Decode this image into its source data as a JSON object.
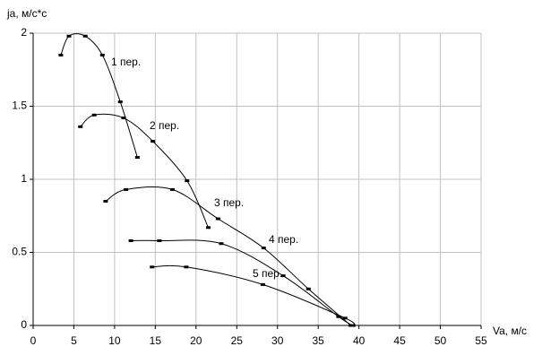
{
  "chart_data": {
    "type": "line",
    "x_label": "Va, м/с",
    "y_label": "ja, м/с*с",
    "xlim": [
      0,
      55
    ],
    "xticks": [
      0,
      5,
      10,
      15,
      20,
      25,
      30,
      35,
      40,
      45,
      50,
      55
    ],
    "ylim": [
      0,
      2
    ],
    "yticks": [
      0,
      0.5,
      1,
      1.5,
      2
    ],
    "grid": true,
    "series": [
      {
        "name": "1 пер.",
        "color": "#000000",
        "x": [
          3.4,
          4.4,
          6.4,
          8.5,
          10.7,
          12.8
        ],
        "values": [
          1.85,
          1.98,
          1.98,
          1.85,
          1.53,
          1.15
        ]
      },
      {
        "name": "2 пер.",
        "color": "#000000",
        "x": [
          5.8,
          7.5,
          11.1,
          14.7,
          18.9,
          21.5
        ],
        "values": [
          1.36,
          1.44,
          1.42,
          1.26,
          0.99,
          0.67
        ]
      },
      {
        "name": "3 пер.",
        "color": "#000000",
        "x": [
          8.9,
          11.4,
          17.1,
          22.7,
          28.3,
          33.8,
          39.0
        ],
        "values": [
          0.85,
          0.93,
          0.93,
          0.73,
          0.53,
          0.25,
          0.0
        ]
      },
      {
        "name": "4 пер.",
        "color": "#000000",
        "x": [
          12.0,
          15.5,
          23.1,
          30.7,
          37.5,
          39.2
        ],
        "values": [
          0.58,
          0.58,
          0.56,
          0.34,
          0.06,
          0.0
        ]
      },
      {
        "name": "5 пер.",
        "color": "#000000",
        "x": [
          14.6,
          18.8,
          28.2,
          38.3,
          39.3
        ],
        "values": [
          0.4,
          0.4,
          0.28,
          0.05,
          0.0
        ]
      }
    ]
  }
}
